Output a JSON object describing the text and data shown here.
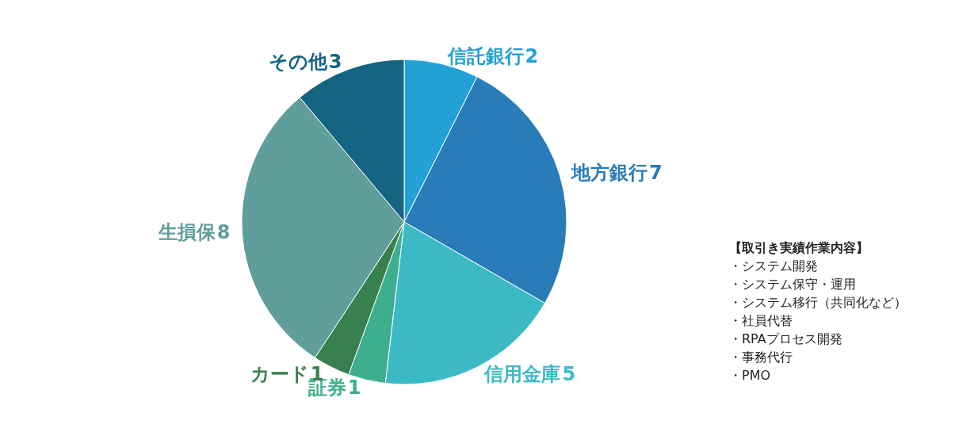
{
  "chart_data": {
    "type": "pie",
    "categories": [
      "信託銀行",
      "地方銀行",
      "信用金庫",
      "証券",
      "カード",
      "生損保",
      "その他"
    ],
    "values": [
      2,
      7,
      5,
      1,
      1,
      8,
      3
    ],
    "colors": [
      "#23a0d5",
      "#2a7cb8",
      "#3bbac5",
      "#3daf8e",
      "#38804f",
      "#5f9e9a",
      "#156482"
    ],
    "data_labels": true,
    "legend": false,
    "annotations": [
      "【取引き実績作業内容】",
      "・システム開発",
      "・システム保守・運用",
      "・システム移行（共同化など）",
      "・社員代替",
      "・RPAプロセス開発",
      "・事務代行",
      "・PMO"
    ]
  }
}
